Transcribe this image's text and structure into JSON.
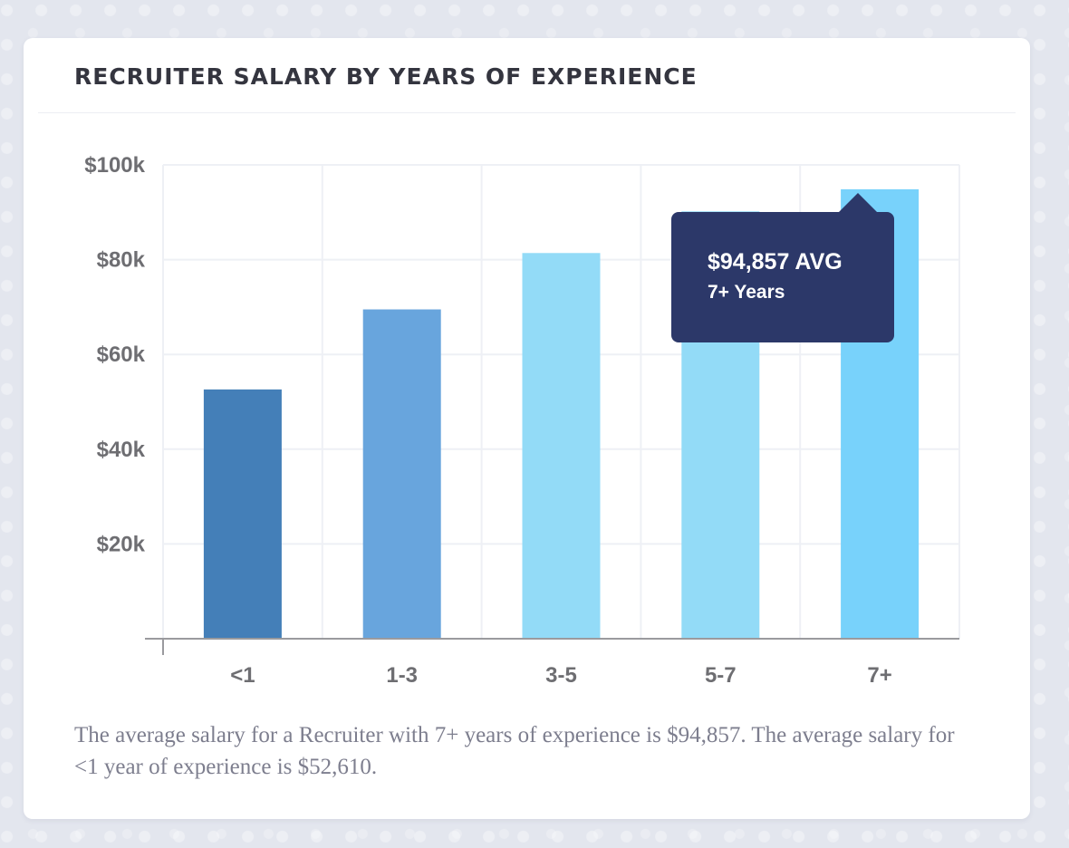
{
  "card": {
    "title": "RECRUITER SALARY BY YEARS OF EXPERIENCE",
    "caption": "The average salary for a Recruiter with 7+ years of experience is $94,857. The average salary for <1 year of experience is $52,610."
  },
  "tooltip": {
    "value_label": "$94,857 AVG",
    "category_label": "7+ Years"
  },
  "chart_data": {
    "type": "bar",
    "title": "RECRUITER SALARY BY YEARS OF EXPERIENCE",
    "xlabel": "",
    "ylabel": "",
    "categories": [
      "<1",
      "1-3",
      "3-5",
      "5-7",
      "7+"
    ],
    "values": [
      52610,
      69500,
      81400,
      90200,
      94857
    ],
    "colors": [
      "#447fb8",
      "#68a5dd",
      "#93dbf7",
      "#93dbf7",
      "#78d2fb"
    ],
    "ylim": [
      0,
      100000
    ],
    "yticks": [
      {
        "value": 20000,
        "label": "$20k"
      },
      {
        "value": 40000,
        "label": "$40k"
      },
      {
        "value": 60000,
        "label": "$60k"
      },
      {
        "value": 80000,
        "label": "$80k"
      },
      {
        "value": 100000,
        "label": "$100k"
      }
    ],
    "grid": true,
    "highlighted_category": "7+"
  },
  "colors": {
    "background": "#e3e6ee",
    "card": "#ffffff",
    "title_text": "#34353f",
    "tick_text": "#6e6e72",
    "grid": "#eef0f5",
    "axis": "#9a9a9e",
    "tooltip_bg": "#2c3869",
    "caption_text": "#7d7e8e"
  }
}
